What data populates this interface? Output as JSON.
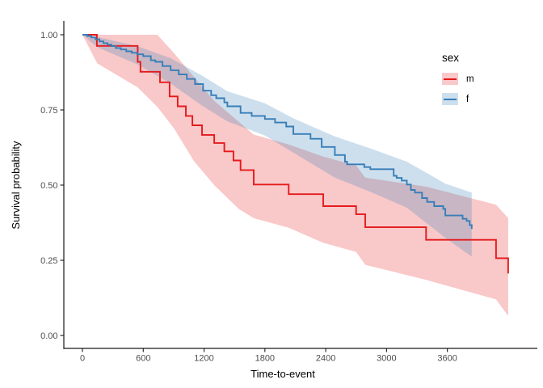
{
  "figure": {
    "background": "#ffffff",
    "panel_background": "#ffffff",
    "axis_color": "#1a1a1a",
    "tick_label_color": "#4d4d4d",
    "title_color": "#000000"
  },
  "chart_data": {
    "type": "line",
    "subtype": "kaplan-meier-step-with-confidence-bands",
    "title": "",
    "xlabel": "Time-to-event",
    "ylabel": "Survival probability",
    "x_ticks": [
      0,
      600,
      1200,
      1800,
      2400,
      3000,
      3600
    ],
    "x_tick_labels": [
      "0",
      "600",
      "1200",
      "1800",
      "2400",
      "3000",
      "3600"
    ],
    "y_ticks": [
      0,
      0.25,
      0.5,
      0.75,
      1
    ],
    "y_tick_labels": [
      "0.00",
      "0.25",
      "0.50",
      "0.75",
      "1.00"
    ],
    "xlim": [
      -180,
      4490
    ],
    "ylim": [
      0,
      1.05
    ],
    "grid": false,
    "legend": {
      "title": "sex",
      "position": "right"
    },
    "series": [
      {
        "name": "m",
        "color": "#E41A1C",
        "band_fill": "rgba(228,26,28,0.24)",
        "points": [
          [
            0,
            1.0
          ],
          [
            143,
            0.963
          ],
          [
            545,
            0.91
          ],
          [
            572,
            0.877
          ],
          [
            765,
            0.842
          ],
          [
            860,
            0.795
          ],
          [
            940,
            0.762
          ],
          [
            1020,
            0.73
          ],
          [
            1085,
            0.699
          ],
          [
            1180,
            0.667
          ],
          [
            1300,
            0.64
          ],
          [
            1400,
            0.612
          ],
          [
            1490,
            0.582
          ],
          [
            1560,
            0.55
          ],
          [
            1690,
            0.502
          ],
          [
            2035,
            0.47
          ],
          [
            2375,
            0.43
          ],
          [
            2700,
            0.403
          ],
          [
            2790,
            0.36
          ],
          [
            3390,
            0.318
          ],
          [
            4080,
            0.257
          ],
          [
            4200,
            0.206
          ]
        ],
        "band": [
          [
            0,
            1.0,
            1.0
          ],
          [
            145,
            1.0,
            0.905
          ],
          [
            545,
            1.0,
            0.825
          ],
          [
            740,
            1.0,
            0.76
          ],
          [
            900,
            0.94,
            0.69
          ],
          [
            1100,
            0.86,
            0.58
          ],
          [
            1300,
            0.78,
            0.5
          ],
          [
            1545,
            0.71,
            0.42
          ],
          [
            1690,
            0.668,
            0.39
          ],
          [
            2035,
            0.635,
            0.358
          ],
          [
            2375,
            0.595,
            0.308
          ],
          [
            2700,
            0.565,
            0.278
          ],
          [
            2790,
            0.525,
            0.235
          ],
          [
            3390,
            0.495,
            0.185
          ],
          [
            4080,
            0.435,
            0.12
          ],
          [
            4200,
            0.39,
            0.065
          ]
        ]
      },
      {
        "name": "f",
        "color": "#377EB8",
        "band_fill": "rgba(55,126,184,0.25)",
        "points": [
          [
            0,
            1.0
          ],
          [
            48,
            0.996
          ],
          [
            88,
            0.991
          ],
          [
            128,
            0.985
          ],
          [
            168,
            0.978
          ],
          [
            208,
            0.972
          ],
          [
            248,
            0.967
          ],
          [
            288,
            0.962
          ],
          [
            328,
            0.956
          ],
          [
            380,
            0.951
          ],
          [
            432,
            0.945
          ],
          [
            486,
            0.94
          ],
          [
            540,
            0.935
          ],
          [
            600,
            0.929
          ],
          [
            675,
            0.915
          ],
          [
            720,
            0.91
          ],
          [
            790,
            0.896
          ],
          [
            870,
            0.882
          ],
          [
            950,
            0.868
          ],
          [
            1030,
            0.853
          ],
          [
            1110,
            0.836
          ],
          [
            1190,
            0.814
          ],
          [
            1270,
            0.799
          ],
          [
            1320,
            0.789
          ],
          [
            1400,
            0.775
          ],
          [
            1430,
            0.762
          ],
          [
            1560,
            0.74
          ],
          [
            1670,
            0.73
          ],
          [
            1800,
            0.72
          ],
          [
            1900,
            0.708
          ],
          [
            2010,
            0.695
          ],
          [
            2080,
            0.67
          ],
          [
            2250,
            0.654
          ],
          [
            2360,
            0.627
          ],
          [
            2490,
            0.6
          ],
          [
            2590,
            0.578
          ],
          [
            2610,
            0.569
          ],
          [
            2780,
            0.56
          ],
          [
            2840,
            0.553
          ],
          [
            3070,
            0.531
          ],
          [
            3100,
            0.524
          ],
          [
            3150,
            0.515
          ],
          [
            3200,
            0.502
          ],
          [
            3240,
            0.484
          ],
          [
            3280,
            0.475
          ],
          [
            3350,
            0.457
          ],
          [
            3400,
            0.444
          ],
          [
            3470,
            0.43
          ],
          [
            3560,
            0.421
          ],
          [
            3580,
            0.399
          ],
          [
            3750,
            0.388
          ],
          [
            3790,
            0.381
          ],
          [
            3820,
            0.367
          ],
          [
            3840,
            0.354
          ]
        ],
        "band": [
          [
            0,
            1.0,
            1.0
          ],
          [
            150,
            0.992,
            0.958
          ],
          [
            540,
            0.962,
            0.902
          ],
          [
            870,
            0.922,
            0.838
          ],
          [
            1190,
            0.862,
            0.762
          ],
          [
            1430,
            0.812,
            0.712
          ],
          [
            1800,
            0.772,
            0.665
          ],
          [
            2080,
            0.722,
            0.608
          ],
          [
            2490,
            0.662,
            0.525
          ],
          [
            2840,
            0.622,
            0.478
          ],
          [
            3200,
            0.578,
            0.425
          ],
          [
            3580,
            0.505,
            0.325
          ],
          [
            3840,
            0.475,
            0.262
          ]
        ]
      }
    ]
  }
}
